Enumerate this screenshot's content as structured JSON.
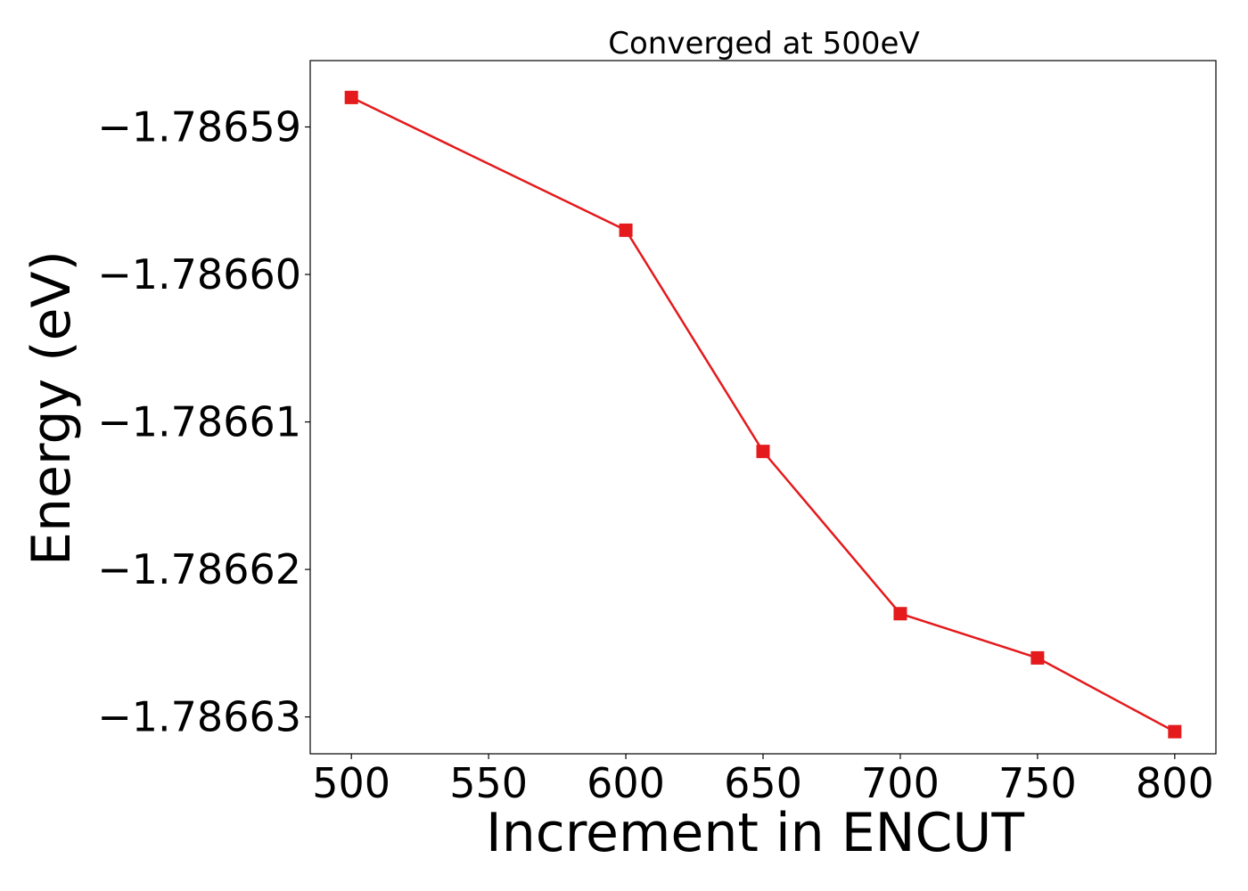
{
  "chart_data": {
    "type": "line",
    "title": "Converged at 500eV",
    "xlabel": "Increment in ENCUT",
    "ylabel": "Energy (eV)",
    "x": [
      500,
      600,
      650,
      700,
      750,
      800
    ],
    "series": [
      {
        "values": [
          -1.786588,
          -1.786597,
          -1.786612,
          -1.786623,
          -1.786626,
          -1.786631
        ],
        "color": "#e41a1c",
        "marker": "square"
      }
    ],
    "xticks": [
      500,
      550,
      600,
      650,
      700,
      750,
      800
    ],
    "xtick_labels": [
      "500",
      "550",
      "600",
      "650",
      "700",
      "750",
      "800"
    ],
    "yticks": [
      -1.78659,
      -1.7866,
      -1.78661,
      -1.78662,
      -1.78663
    ],
    "ytick_labels": [
      "−1.78659",
      "−1.78660",
      "−1.78661",
      "−1.78662",
      "−1.78663"
    ],
    "xlim": [
      485,
      815
    ],
    "ylim": [
      -1.7866325,
      -1.7865855
    ],
    "grid": false,
    "legend": false
  }
}
